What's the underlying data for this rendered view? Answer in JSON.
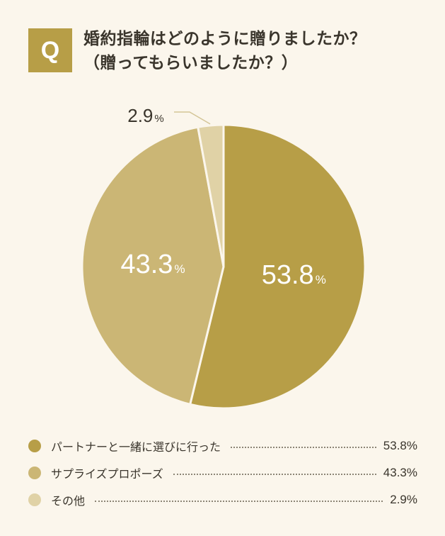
{
  "question": {
    "badge": "Q",
    "line1": "婚約指輪はどのように贈りましたか？",
    "line2": "（贈ってもらいましたか？）"
  },
  "chart_data": {
    "type": "pie",
    "slices": [
      {
        "label": "パートナーと一緒に選びに行った",
        "value": 53.8,
        "display": "53.8",
        "color": "#b79e47"
      },
      {
        "label": "サプライズプロポーズ",
        "value": 43.3,
        "display": "43.3",
        "color": "#cbb675"
      },
      {
        "label": "その他",
        "value": 2.9,
        "display": "2.9",
        "color": "#e0d2a6"
      }
    ],
    "unit": "%",
    "legend_values": [
      "53.8%",
      "43.3%",
      "2.9%"
    ]
  }
}
